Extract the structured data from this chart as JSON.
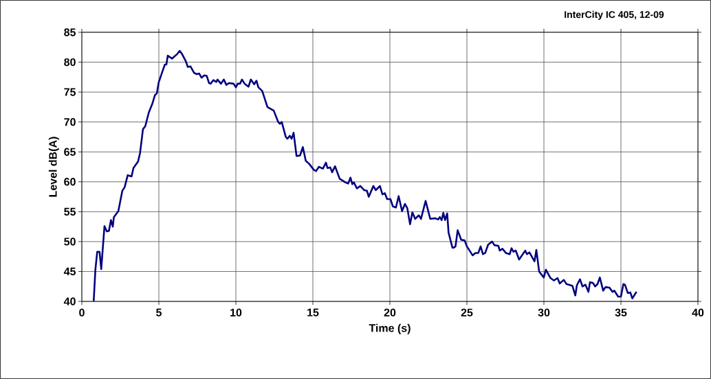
{
  "chart_data": {
    "type": "line",
    "title": "InterCity IC 405, 12-09",
    "xlabel": "Time (s)",
    "ylabel": "Level dB(A)",
    "xlim": [
      0,
      40
    ],
    "xticks": [
      0,
      5,
      10,
      15,
      20,
      25,
      30,
      35,
      40
    ],
    "ylim": [
      40,
      85
    ],
    "yticks": [
      40,
      45,
      50,
      55,
      60,
      65,
      70,
      75,
      80,
      85
    ],
    "grid": true,
    "marker": "none",
    "line_style": "solid",
    "series": [
      {
        "color": "#000080",
        "x": [
          0.77,
          0.88,
          1.0,
          1.15,
          1.26,
          1.47,
          1.62,
          1.76,
          1.89,
          2.01,
          2.08,
          2.37,
          2.63,
          2.78,
          2.98,
          3.23,
          3.35,
          3.65,
          3.78,
          3.97,
          4.12,
          4.35,
          4.57,
          4.75,
          4.87,
          4.99,
          5.24,
          5.39,
          5.49,
          5.58,
          5.86,
          6.21,
          6.35,
          6.5,
          6.76,
          6.88,
          7.05,
          7.29,
          7.47,
          7.62,
          7.77,
          7.95,
          8.11,
          8.26,
          8.36,
          8.54,
          8.73,
          8.81,
          9.03,
          9.22,
          9.38,
          9.55,
          9.85,
          10.0,
          10.12,
          10.27,
          10.4,
          10.57,
          10.82,
          10.97,
          11.19,
          11.34,
          11.46,
          11.71,
          12.05,
          12.46,
          12.75,
          12.86,
          12.98,
          13.24,
          13.35,
          13.5,
          13.62,
          13.75,
          13.94,
          14.17,
          14.35,
          14.54,
          14.76,
          15.06,
          15.21,
          15.39,
          15.65,
          15.85,
          15.95,
          16.13,
          16.25,
          16.44,
          16.74,
          16.99,
          17.11,
          17.29,
          17.44,
          17.56,
          17.66,
          17.86,
          18.08,
          18.33,
          18.51,
          18.63,
          18.93,
          19.08,
          19.35,
          19.52,
          19.67,
          19.82,
          20.04,
          20.19,
          20.39,
          20.57,
          20.79,
          20.98,
          21.13,
          21.31,
          21.46,
          21.64,
          21.88,
          22.02,
          22.32,
          22.62,
          22.95,
          23.13,
          23.24,
          23.36,
          23.47,
          23.58,
          23.72,
          23.81,
          24.06,
          24.15,
          24.26,
          24.4,
          24.63,
          24.85,
          25.0,
          25.37,
          25.55,
          25.74,
          25.89,
          26.04,
          26.19,
          26.38,
          26.64,
          26.79,
          27.04,
          27.13,
          27.31,
          27.53,
          27.78,
          27.9,
          28.02,
          28.17,
          28.39,
          28.79,
          28.9,
          29.06,
          29.39,
          29.51,
          29.69,
          29.99,
          30.13,
          30.43,
          30.65,
          30.88,
          31.03,
          31.29,
          31.47,
          31.85,
          32.04,
          32.14,
          32.34,
          32.51,
          32.69,
          32.89,
          32.99,
          33.18,
          33.33,
          33.48,
          33.63,
          33.85,
          34.0,
          34.26,
          34.45,
          34.57,
          34.82,
          35.0,
          35.16,
          35.26,
          35.45,
          35.61,
          35.74,
          36.01
        ],
        "values": [
          40.0,
          45.3,
          48.3,
          48.3,
          45.4,
          52.6,
          51.7,
          51.8,
          53.6,
          52.5,
          54.1,
          55.1,
          58.5,
          59.1,
          61.1,
          60.9,
          62.3,
          63.4,
          64.8,
          68.8,
          69.3,
          71.6,
          73.0,
          74.5,
          74.8,
          76.6,
          78.5,
          79.6,
          79.6,
          81.1,
          80.6,
          81.4,
          81.9,
          81.4,
          80.1,
          79.2,
          79.3,
          78.2,
          78.0,
          78.1,
          77.4,
          77.8,
          77.7,
          76.5,
          76.4,
          77.0,
          76.7,
          77.1,
          76.4,
          77.1,
          76.2,
          76.5,
          76.4,
          75.8,
          76.4,
          76.4,
          77.1,
          76.4,
          75.9,
          77.1,
          76.3,
          76.9,
          75.8,
          75.2,
          72.5,
          71.9,
          70.0,
          69.7,
          70.0,
          67.5,
          67.2,
          67.7,
          67.2,
          68.2,
          64.3,
          64.4,
          65.8,
          63.5,
          63.0,
          62.0,
          61.8,
          62.5,
          62.2,
          63.2,
          62.3,
          62.4,
          61.6,
          62.6,
          60.5,
          60.1,
          59.9,
          59.7,
          60.7,
          59.6,
          59.9,
          58.9,
          59.3,
          58.6,
          58.5,
          57.5,
          59.3,
          58.6,
          59.3,
          57.9,
          58.1,
          57.1,
          57.1,
          55.9,
          55.7,
          57.6,
          55.1,
          56.3,
          55.6,
          52.9,
          54.9,
          53.8,
          54.4,
          53.8,
          56.8,
          53.8,
          53.9,
          53.7,
          54.1,
          53.6,
          54.8,
          53.6,
          54.7,
          51.5,
          49.0,
          49.0,
          49.2,
          51.9,
          50.3,
          50.2,
          49.2,
          47.7,
          48.1,
          48.1,
          49.2,
          47.9,
          48.1,
          49.5,
          50.0,
          49.4,
          49.3,
          48.5,
          48.8,
          48.1,
          47.9,
          48.9,
          48.3,
          48.5,
          47.0,
          48.5,
          47.9,
          48.2,
          46.7,
          48.6,
          45.0,
          44.0,
          45.3,
          43.9,
          43.5,
          43.9,
          43.0,
          43.6,
          42.9,
          42.6,
          41.0,
          42.7,
          43.7,
          42.5,
          42.8,
          41.6,
          43.2,
          43.1,
          42.5,
          42.9,
          44.0,
          41.8,
          42.4,
          42.3,
          41.6,
          41.8,
          40.8,
          40.8,
          42.9,
          42.8,
          41.4,
          41.5,
          40.5,
          41.6
        ]
      }
    ]
  }
}
